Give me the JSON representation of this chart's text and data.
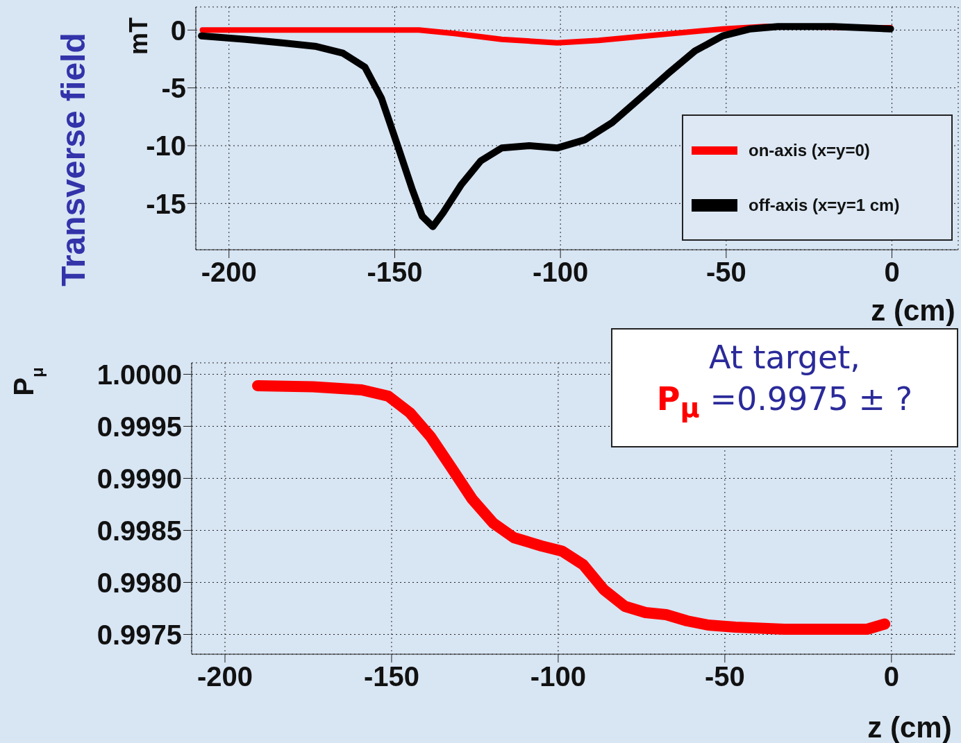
{
  "chart_data": [
    {
      "type": "line",
      "ylabel": "mT",
      "xlabel": "z (cm)",
      "annotations": [
        "Transverse field"
      ],
      "xlim": [
        -210,
        20
      ],
      "xticks": [
        -200,
        -150,
        -100,
        -50,
        0
      ],
      "ylim": [
        -19,
        2
      ],
      "yticks": [
        0,
        -5,
        -10,
        -15
      ],
      "grid": true,
      "legend": "right",
      "series": [
        {
          "name": "on-axis (x=y=0)",
          "color": "#ff0000",
          "x": [
            -208,
            -180,
            -160,
            -142.7,
            -132,
            -117.7,
            -101,
            -88.5,
            -70,
            -51,
            -38.5,
            -0.4
          ],
          "values": [
            0,
            0,
            0,
            0,
            -0.3,
            -0.8,
            -1.1,
            -0.9,
            -0.4,
            0.1,
            0.3,
            0.2
          ]
        },
        {
          "name": "off-axis (x=y=1 cm)",
          "color": "#000000",
          "x": [
            -208.3,
            -195,
            -184,
            -174,
            -165.6,
            -159,
            -154,
            -149,
            -144.8,
            -141.7,
            -138.5,
            -135.4,
            -130,
            -124,
            -117.7,
            -109.4,
            -101,
            -92.7,
            -84.4,
            -76,
            -67.7,
            -59.4,
            -51,
            -42.7,
            -34.4,
            -17.7,
            -0.4
          ],
          "values": [
            -0.5,
            -0.8,
            -1.1,
            -1.4,
            -2.0,
            -3.2,
            -5.9,
            -10.1,
            -13.7,
            -16.1,
            -17.0,
            -15.8,
            -13.4,
            -11.3,
            -10.2,
            -10.0,
            -10.2,
            -9.5,
            -8.0,
            -5.9,
            -3.8,
            -1.8,
            -0.5,
            0.1,
            0.3,
            0.3,
            0.1
          ]
        }
      ]
    },
    {
      "type": "line",
      "ylabel": "P$_{μ}$",
      "xlabel": "z (cm)",
      "annotations": [
        "At target,",
        "P$_{μ}$ =0.9975 ± ?"
      ],
      "xlim": [
        -210,
        19
      ],
      "xticks": [
        -200,
        -150,
        -100,
        -50,
        0
      ],
      "ylim": [
        0.99731,
        1.00011
      ],
      "yticks": [
        {
          "value": 1,
          "label": "1.0000"
        },
        {
          "value": 0.9995,
          "label": "0.9995"
        },
        {
          "value": 0.999,
          "label": "0.9990"
        },
        {
          "value": 0.9985,
          "label": "0.9985"
        },
        {
          "value": 0.998,
          "label": "0.9980"
        },
        {
          "value": 0.9975,
          "label": "0.9975"
        }
      ],
      "grid": true,
      "series": [
        {
          "color": "#ff0000",
          "x": [
            -190.2,
            -173.6,
            -159,
            -151,
            -144.5,
            -138.3,
            -132,
            -125.8,
            -119.5,
            -113.3,
            -105,
            -98.8,
            -92.5,
            -86.3,
            -80,
            -73.8,
            -67.6,
            -61.3,
            -55,
            -46.8,
            -32.2,
            -17.7,
            -7.3,
            -2
          ],
          "values": [
            0.99989,
            0.99988,
            0.99985,
            0.99979,
            0.99963,
            0.9994,
            0.9991,
            0.9988,
            0.99857,
            0.99843,
            0.99835,
            0.9983,
            0.99817,
            0.99793,
            0.99777,
            0.99771,
            0.99769,
            0.99763,
            0.99759,
            0.99757,
            0.99755,
            0.99755,
            0.99755,
            0.9976
          ]
        }
      ]
    }
  ]
}
